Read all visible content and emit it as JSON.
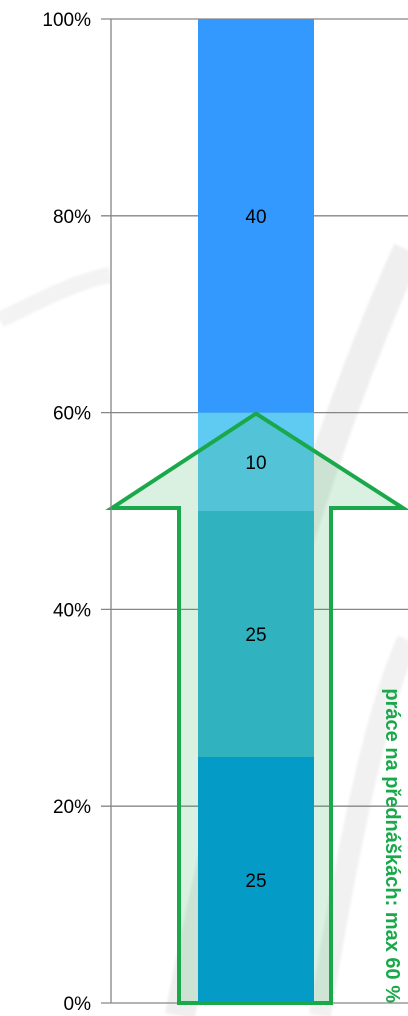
{
  "chart_data": {
    "type": "bar",
    "stacked": true,
    "categories": [
      ""
    ],
    "series": [
      {
        "values": [
          25
        ],
        "color": "#009ADF"
      },
      {
        "values": [
          25
        ],
        "color": "#35B5D5"
      },
      {
        "values": [
          10
        ],
        "color": "#58C8E3"
      },
      {
        "values": [
          40
        ],
        "color": "#3399FF"
      }
    ],
    "highlight_color": "#66CCFF",
    "ylim": [
      0,
      100
    ],
    "yticks": [
      {
        "value": 0,
        "label": "0%"
      },
      {
        "value": 20,
        "label": "20%"
      },
      {
        "value": 40,
        "label": "40%"
      },
      {
        "value": 60,
        "label": "60%"
      },
      {
        "value": 80,
        "label": "80%"
      },
      {
        "value": 100,
        "label": "100%"
      }
    ],
    "grid": true,
    "annotation": {
      "text": "práce na přednáškách: max 60 %",
      "value": 60,
      "color": "#19A84A"
    }
  }
}
